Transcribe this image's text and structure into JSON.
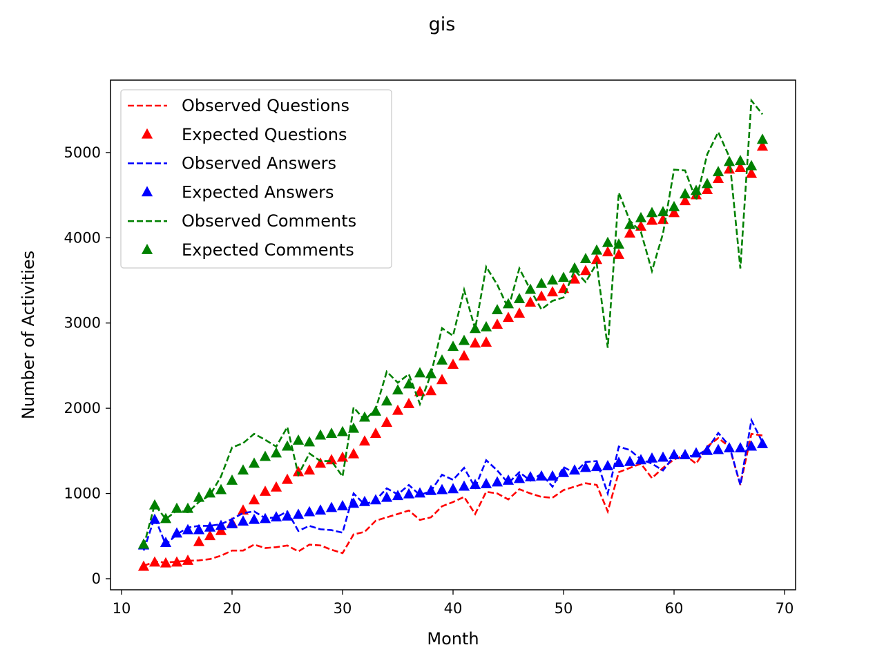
{
  "chart_data": {
    "type": "line",
    "title": "gis",
    "xlabel": "Month",
    "ylabel": "Number of Activities",
    "xlim": [
      9,
      71
    ],
    "ylim": [
      -130,
      5850
    ],
    "xticks": [
      10,
      20,
      30,
      40,
      50,
      60,
      70
    ],
    "yticks": [
      0,
      1000,
      2000,
      3000,
      4000,
      5000
    ],
    "grid": false,
    "legend_position": "top-left",
    "x": [
      12,
      13,
      14,
      15,
      16,
      17,
      18,
      19,
      20,
      21,
      22,
      23,
      24,
      25,
      26,
      27,
      28,
      29,
      30,
      31,
      32,
      33,
      34,
      35,
      36,
      37,
      38,
      39,
      40,
      41,
      42,
      43,
      44,
      45,
      46,
      47,
      48,
      49,
      50,
      51,
      52,
      53,
      54,
      55,
      56,
      57,
      58,
      59,
      60,
      61,
      62,
      63,
      64,
      65,
      66,
      67,
      68
    ],
    "series": [
      {
        "name": "Observed Questions",
        "style": "dashed",
        "color": "#ff0000",
        "values": [
          150,
          200,
          190,
          200,
          210,
          215,
          230,
          270,
          330,
          330,
          400,
          360,
          370,
          390,
          320,
          400,
          390,
          340,
          300,
          520,
          550,
          680,
          720,
          760,
          800,
          690,
          720,
          850,
          900,
          960,
          760,
          1020,
          1000,
          930,
          1050,
          1000,
          960,
          950,
          1040,
          1080,
          1120,
          1100,
          790,
          1250,
          1300,
          1350,
          1180,
          1300,
          1400,
          1450,
          1350,
          1550,
          1650,
          1550,
          1100,
          1700,
          1680
        ]
      },
      {
        "name": "Expected Questions",
        "style": "triangle",
        "color": "#ff0000",
        "values": [
          140,
          190,
          180,
          190,
          210,
          430,
          500,
          560,
          650,
          800,
          920,
          1020,
          1070,
          1160,
          1250,
          1270,
          1350,
          1390,
          1420,
          1460,
          1610,
          1700,
          1830,
          1970,
          2050,
          2190,
          2200,
          2330,
          2510,
          2610,
          2760,
          2770,
          2980,
          3060,
          3110,
          3240,
          3310,
          3360,
          3400,
          3510,
          3610,
          3740,
          3830,
          3800,
          4050,
          4130,
          4200,
          4210,
          4290,
          4430,
          4500,
          4560,
          4690,
          4800,
          4820,
          4750,
          5070
        ]
      },
      {
        "name": "Observed Answers",
        "style": "dashed",
        "color": "#0000ff",
        "values": [
          330,
          720,
          400,
          520,
          600,
          620,
          620,
          640,
          700,
          770,
          790,
          710,
          720,
          790,
          560,
          620,
          580,
          570,
          540,
          1000,
          870,
          920,
          1060,
          990,
          1100,
          980,
          1030,
          1220,
          1160,
          1300,
          1070,
          1390,
          1270,
          1120,
          1250,
          1150,
          1230,
          1080,
          1310,
          1240,
          1370,
          1380,
          1000,
          1550,
          1510,
          1400,
          1350,
          1270,
          1440,
          1440,
          1440,
          1520,
          1710,
          1560,
          1100,
          1860,
          1600
        ]
      },
      {
        "name": "Expected Answers",
        "style": "triangle",
        "color": "#0000ff",
        "values": [
          390,
          690,
          420,
          530,
          570,
          570,
          600,
          620,
          640,
          670,
          690,
          700,
          720,
          730,
          750,
          780,
          800,
          830,
          850,
          880,
          900,
          920,
          950,
          970,
          990,
          1000,
          1030,
          1040,
          1050,
          1080,
          1100,
          1110,
          1130,
          1150,
          1170,
          1190,
          1200,
          1200,
          1240,
          1270,
          1300,
          1310,
          1320,
          1360,
          1370,
          1390,
          1410,
          1420,
          1450,
          1450,
          1470,
          1500,
          1510,
          1530,
          1530,
          1550,
          1580
        ]
      },
      {
        "name": "Observed Comments",
        "style": "dashed",
        "color": "#008000",
        "values": [
          380,
          870,
          700,
          800,
          780,
          900,
          980,
          1200,
          1540,
          1590,
          1700,
          1630,
          1550,
          1780,
          1220,
          1470,
          1380,
          1380,
          1200,
          2010,
          1860,
          1990,
          2430,
          2300,
          2400,
          2050,
          2400,
          2940,
          2850,
          3390,
          2930,
          3660,
          3450,
          3170,
          3640,
          3390,
          3160,
          3260,
          3300,
          3620,
          3480,
          3700,
          2710,
          4530,
          4200,
          4070,
          3610,
          4050,
          4800,
          4790,
          4440,
          4980,
          5240,
          4950,
          3640,
          5610,
          5450
        ]
      },
      {
        "name": "Expected Comments",
        "style": "triangle",
        "color": "#008000",
        "values": [
          400,
          860,
          700,
          820,
          820,
          950,
          1000,
          1040,
          1150,
          1270,
          1350,
          1430,
          1470,
          1550,
          1620,
          1600,
          1680,
          1700,
          1720,
          1760,
          1890,
          1960,
          2080,
          2210,
          2280,
          2410,
          2400,
          2560,
          2720,
          2790,
          2930,
          2950,
          3150,
          3220,
          3280,
          3390,
          3460,
          3500,
          3530,
          3640,
          3750,
          3850,
          3940,
          3920,
          4150,
          4230,
          4290,
          4300,
          4360,
          4510,
          4550,
          4630,
          4770,
          4890,
          4900,
          4840,
          5150
        ]
      }
    ]
  }
}
